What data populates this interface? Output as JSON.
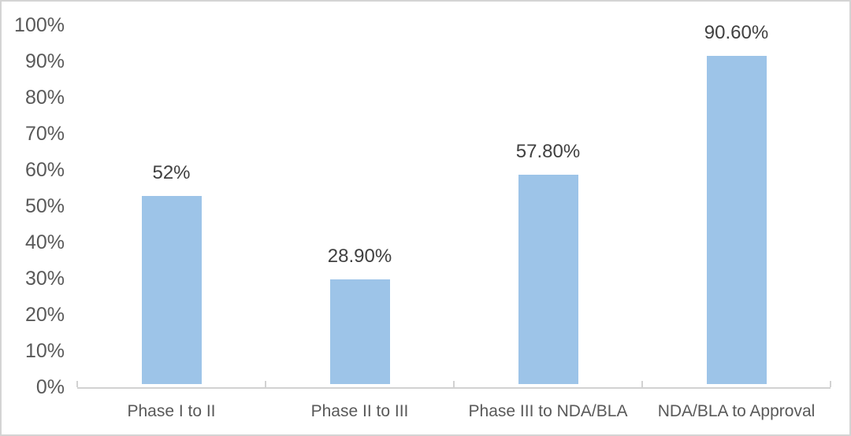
{
  "chart_data": {
    "type": "bar",
    "title": "",
    "categories": [
      "Phase I to II",
      "Phase II to III",
      "Phase III to NDA/BLA",
      "NDA/BLA to Approval"
    ],
    "values": [
      52,
      28.9,
      57.8,
      90.6
    ],
    "data_labels": [
      "52%",
      "28.90%",
      "57.80%",
      "90.60%"
    ],
    "y_tick_labels": [
      "0%",
      "10%",
      "20%",
      "30%",
      "40%",
      "50%",
      "60%",
      "70%",
      "80%",
      "90%",
      "100%"
    ],
    "ylim": [
      0,
      100
    ],
    "xlabel": "",
    "ylabel": "",
    "grid": false,
    "legend": false,
    "colors": {
      "bar_fill": "#9dc4e8",
      "axis_line": "#d2d2d2",
      "tick_label_text": "#595959",
      "category_label_text": "#595959",
      "data_label_text": "#404040",
      "frame_border": "#d4d4d4",
      "background": "#ffffff"
    }
  }
}
